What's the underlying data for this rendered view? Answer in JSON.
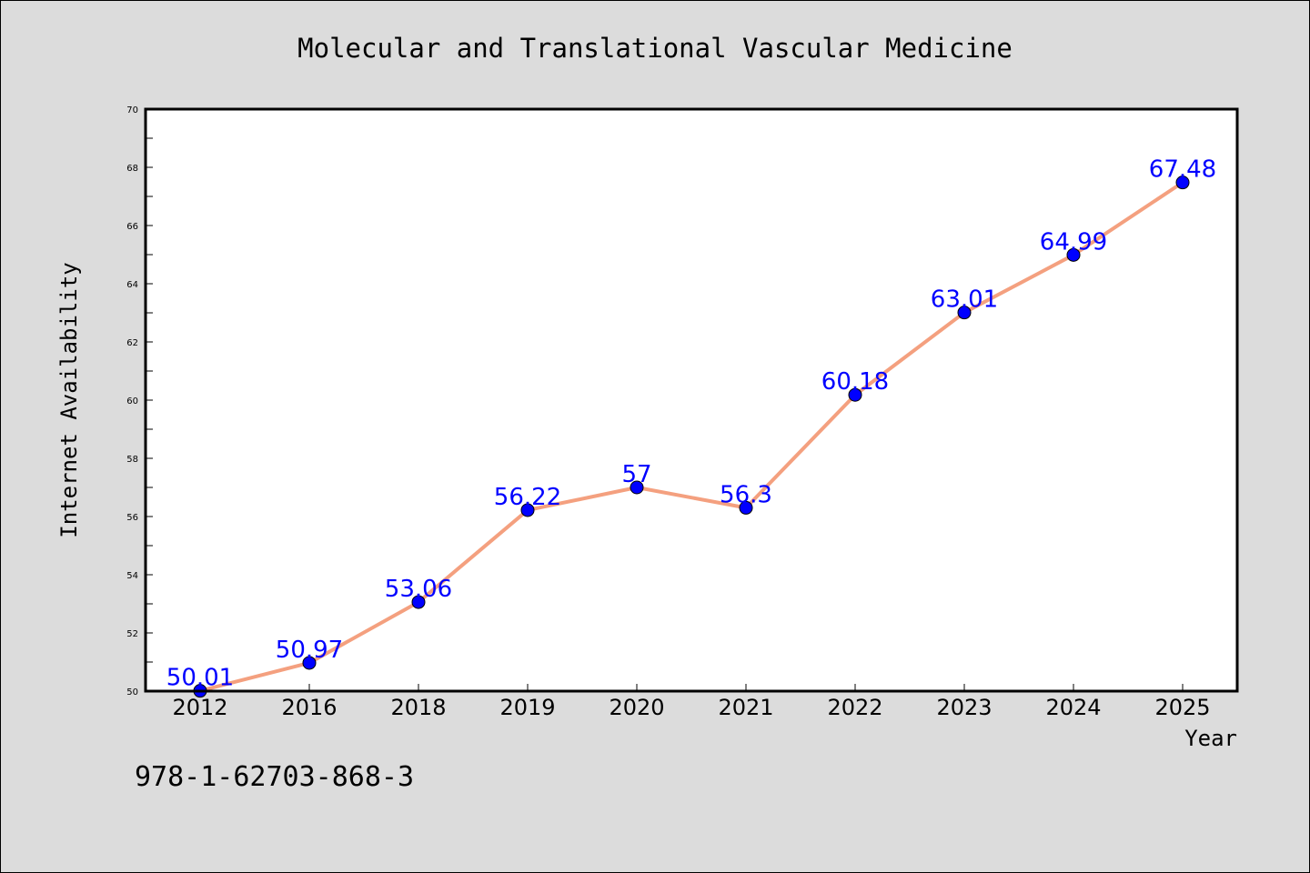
{
  "footer_text": "978-1-62703-868-3",
  "chart_data": {
    "type": "line",
    "title": "Molecular and Translational Vascular Medicine",
    "xlabel": "Year",
    "ylabel": "Internet Availability",
    "categories": [
      "2012",
      "2016",
      "2018",
      "2019",
      "2020",
      "2021",
      "2022",
      "2023",
      "2024",
      "2025"
    ],
    "values": [
      50.01,
      50.97,
      53.06,
      56.22,
      57,
      56.3,
      60.18,
      63.01,
      64.99,
      67.48
    ],
    "data_labels": [
      "50.01",
      "50.97",
      "53.06",
      "56.22",
      "57",
      "56.3",
      "60.18",
      "63.01",
      "64.99",
      "67.48"
    ],
    "ylim": [
      50,
      70
    ],
    "yticks": [
      50,
      52,
      54,
      56,
      58,
      60,
      62,
      64,
      66,
      68,
      70
    ],
    "grid": false,
    "colors": {
      "line": "#f4a07f",
      "marker": "#0000ff",
      "label": "#0000ff",
      "plot_bg": "#ffffff",
      "page_bg": "#dcdcdc"
    }
  }
}
